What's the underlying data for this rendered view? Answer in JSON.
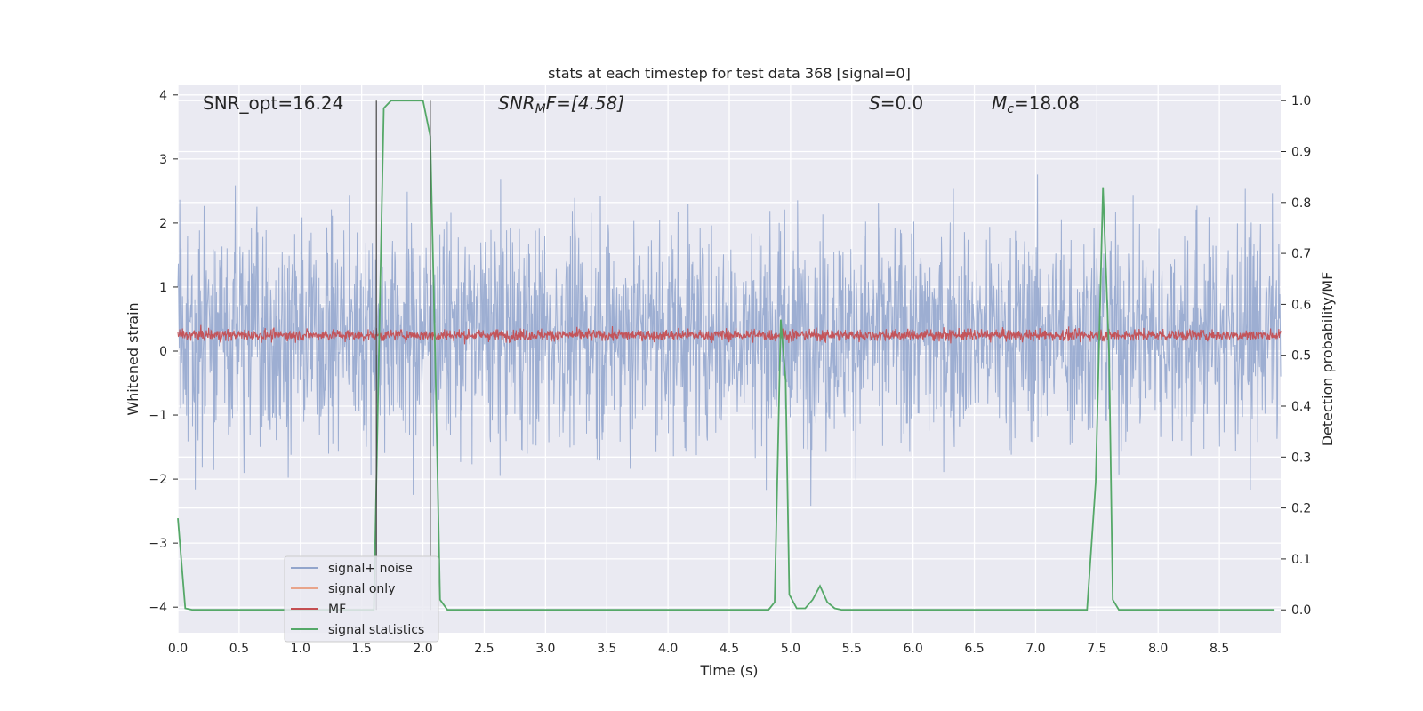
{
  "chart_data": {
    "type": "line",
    "title": "stats at each timestep for test data 368 [signal=0]",
    "xlabel": "Time (s)",
    "ylabel": "Whitened strain",
    "ylabel_right": "Detection probability/MF",
    "xlim": [
      0.0,
      9.0
    ],
    "ylim": [
      -4.4,
      4.15
    ],
    "ylim_right": [
      -0.045,
      1.03
    ],
    "x_ticks": [
      "0.0",
      "0.5",
      "1.0",
      "1.5",
      "2.0",
      "2.5",
      "3.0",
      "3.5",
      "4.0",
      "4.5",
      "5.0",
      "5.5",
      "6.0",
      "6.5",
      "7.0",
      "7.5",
      "8.0",
      "8.5"
    ],
    "y_ticks": [
      "−4",
      "−3",
      "−2",
      "−1",
      "0",
      "1",
      "2",
      "3",
      "4"
    ],
    "y_right_ticks": [
      "0.0",
      "0.1",
      "0.2",
      "0.3",
      "0.4",
      "0.5",
      "0.6",
      "0.7",
      "0.8",
      "0.9",
      "1.0"
    ],
    "grid": true,
    "background": "#eaeaf2",
    "annotations": {
      "snr_opt": "SNR_opt=16.24",
      "snr_mf_main": "SNR",
      "snr_mf_sub": "M",
      "snr_mf_rest": "F=[4.58]",
      "s_label": "S",
      "s_value": "=0.0",
      "mc_label": "M",
      "mc_sub": "c",
      "mc_value": "=18.08"
    },
    "vertical_markers_x": [
      1.62,
      2.06
    ],
    "legend": {
      "position": "lower-left",
      "entries": [
        {
          "label": "signal+ noise",
          "color": "#92a5cc"
        },
        {
          "label": "signal only",
          "color": "#e8a48a"
        },
        {
          "label": "MF",
          "color": "#c44e52"
        },
        {
          "label": "signal statistics",
          "color": "#55a868"
        }
      ]
    },
    "series": [
      {
        "name": "signal+ noise",
        "color": "#8fa3cc",
        "axis": "left",
        "kind": "noise",
        "x_range": [
          0.0,
          9.0
        ],
        "sigma": 0.85,
        "typical_range": [
          -2.7,
          3.8
        ]
      },
      {
        "name": "MF",
        "color": "#c44e52",
        "axis": "left",
        "kind": "noise",
        "x_range": [
          0.0,
          9.0
        ],
        "mean": 0.25,
        "typical_range": [
          -0.05,
          1.0
        ]
      },
      {
        "name": "signal statistics",
        "color": "#55a868",
        "axis": "right",
        "points": [
          [
            0.0,
            0.18
          ],
          [
            0.06,
            0.003
          ],
          [
            0.12,
            0.0
          ],
          [
            1.6,
            0.0
          ],
          [
            1.64,
            0.5
          ],
          [
            1.68,
            0.985
          ],
          [
            1.74,
            1.0
          ],
          [
            2.0,
            1.0
          ],
          [
            2.06,
            0.93
          ],
          [
            2.1,
            0.5
          ],
          [
            2.14,
            0.02
          ],
          [
            2.2,
            0.0
          ],
          [
            4.82,
            0.0
          ],
          [
            4.87,
            0.015
          ],
          [
            4.92,
            0.57
          ],
          [
            4.96,
            0.45
          ],
          [
            4.99,
            0.03
          ],
          [
            5.05,
            0.003
          ],
          [
            5.12,
            0.003
          ],
          [
            5.18,
            0.02
          ],
          [
            5.24,
            0.047
          ],
          [
            5.3,
            0.015
          ],
          [
            5.36,
            0.003
          ],
          [
            5.42,
            0.0
          ],
          [
            7.42,
            0.0
          ],
          [
            7.49,
            0.25
          ],
          [
            7.55,
            0.83
          ],
          [
            7.6,
            0.5
          ],
          [
            7.63,
            0.02
          ],
          [
            7.68,
            0.0
          ],
          [
            8.95,
            0.0
          ]
        ]
      }
    ]
  }
}
